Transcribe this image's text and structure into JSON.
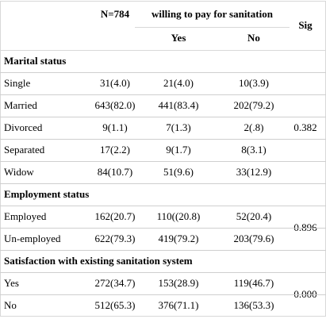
{
  "header": {
    "n_label": "N=784",
    "group_label": "willing to pay for sanitation",
    "yes_label": "Yes",
    "no_label": "No",
    "sig_label": "Sig"
  },
  "sections": [
    {
      "title": "Marital status",
      "sig": "0.382",
      "rows": [
        {
          "label": "Single",
          "n": "31(4.0)",
          "yes": "21(4.0)",
          "no": "10(3.9)"
        },
        {
          "label": "Married",
          "n": "643(82.0)",
          "yes": "441(83.4)",
          "no": "202(79.2)"
        },
        {
          "label": "Divorced",
          "n": "9(1.1)",
          "yes": "7(1.3)",
          "no": "2(.8)"
        },
        {
          "label": "Separated",
          "n": "17(2.2)",
          "yes": "9(1.7)",
          "no": "8(3.1)"
        },
        {
          "label": "Widow",
          "n": "84(10.7)",
          "yes": "51(9.6)",
          "no": "33(12.9)"
        }
      ]
    },
    {
      "title": "Employment status",
      "sig": "0.896",
      "rows": [
        {
          "label": "Employed",
          "n": "162(20.7)",
          "yes": "110((20.8)",
          "no": "52(20.4)"
        },
        {
          "label": "Un-employed",
          "n": "622(79.3)",
          "yes": "419(79.2)",
          "no": "203(79.6)"
        }
      ]
    },
    {
      "title": "Satisfaction with existing sanitation system",
      "sig": "0.000",
      "rows": [
        {
          "label": "Yes",
          "n": "272(34.7)",
          "yes": "153(28.9)",
          "no": "119(46.7)"
        },
        {
          "label": "No",
          "n": "512(65.3)",
          "yes": "376(71.1)",
          "no": "136(53.3)"
        }
      ]
    }
  ]
}
